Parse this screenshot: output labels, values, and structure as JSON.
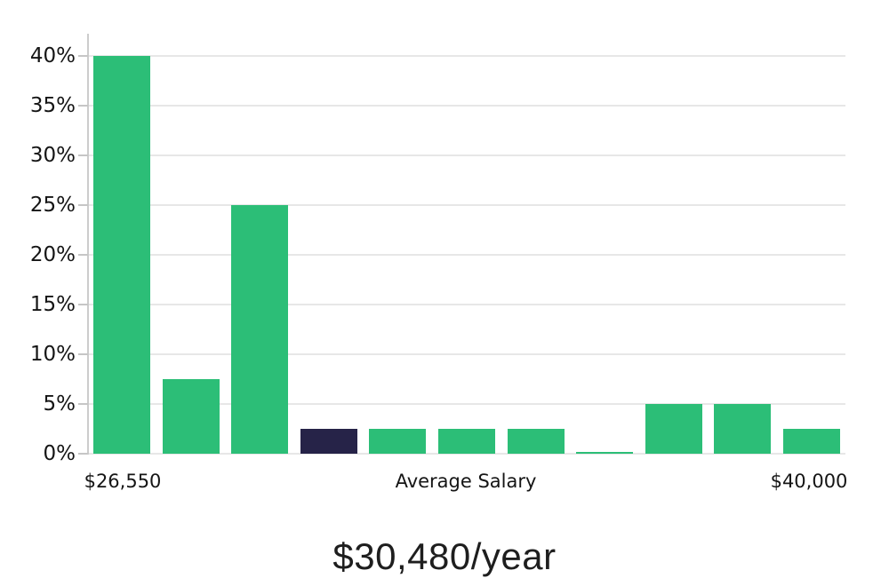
{
  "chart_data": {
    "type": "bar",
    "title": "$30,480/year",
    "values": [
      40,
      7.5,
      25,
      2.5,
      2.5,
      2.5,
      2.5,
      0.15,
      5,
      5,
      2.5
    ],
    "highlight_index": 3,
    "yticks": [
      {
        "value": 0,
        "label": "0%"
      },
      {
        "value": 5,
        "label": "5%"
      },
      {
        "value": 10,
        "label": "10%"
      },
      {
        "value": 15,
        "label": "15%"
      },
      {
        "value": 20,
        "label": "20%"
      },
      {
        "value": 25,
        "label": "25%"
      },
      {
        "value": 30,
        "label": "30%"
      },
      {
        "value": 35,
        "label": "35%"
      },
      {
        "value": 40,
        "label": "40%"
      }
    ],
    "ylim": [
      0,
      42.2
    ],
    "grid": "horizontal",
    "legend": "none",
    "x_axis": {
      "left_label": "$26,550",
      "center_label": "Average Salary",
      "right_label": "$40,000"
    },
    "colors": {
      "bar": "#2cbe77",
      "highlight_bar": "#262348",
      "gridline": "#e7e7e7",
      "axis_line": "#cccccc",
      "tick_text": "#151515",
      "title_text": "#1e1e1e",
      "background": "#ffffff"
    }
  }
}
